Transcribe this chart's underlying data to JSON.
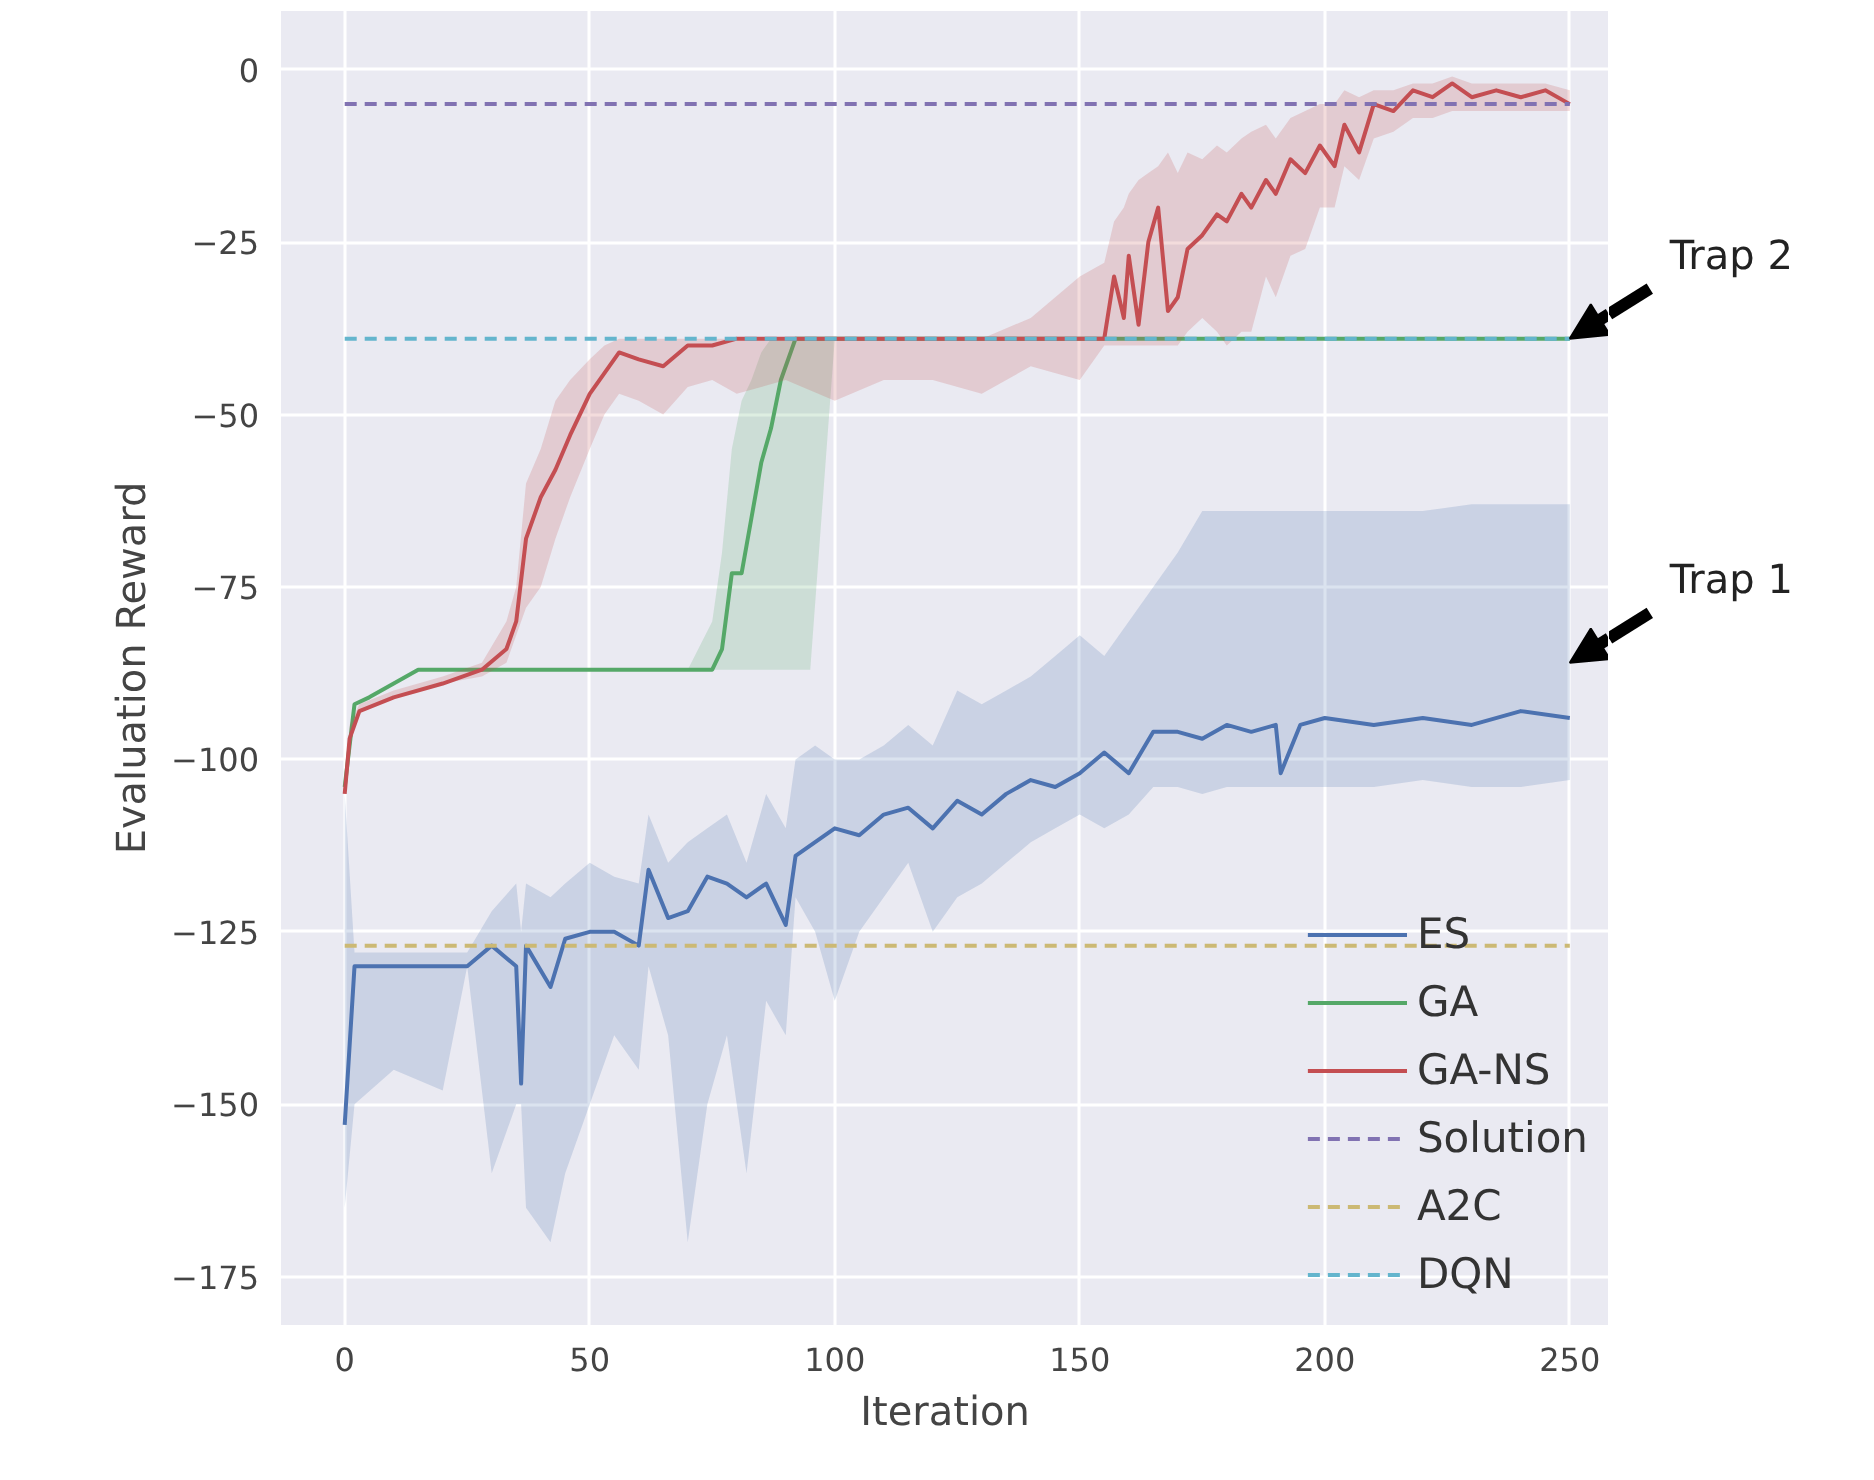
{
  "chart_data": {
    "type": "line",
    "xlabel": "Iteration",
    "ylabel": "Evaluation Reward",
    "xlim": [
      -13,
      258
    ],
    "ylim": [
      -182,
      8.5
    ],
    "xticks": [
      0,
      50,
      100,
      150,
      200,
      250
    ],
    "yticks": [
      0,
      -25,
      -50,
      -75,
      -100,
      -125,
      -150,
      -175
    ],
    "grid": true,
    "legend": "bottom right",
    "marker": "none",
    "annotations": [
      {
        "text": "Trap 2",
        "x": 250,
        "y": -39
      },
      {
        "text": "Trap 1",
        "x": 250,
        "y": -86
      }
    ],
    "series": [
      {
        "name": "ES",
        "color": "#4c72b0",
        "line_style": "solid",
        "x": [
          0,
          2,
          10,
          20,
          25,
          30,
          35,
          36,
          37,
          42,
          45,
          50,
          55,
          60,
          62,
          66,
          70,
          74,
          78,
          82,
          86,
          90,
          92,
          96,
          100,
          105,
          110,
          115,
          120,
          125,
          130,
          135,
          140,
          145,
          150,
          155,
          160,
          165,
          170,
          175,
          180,
          185,
          190,
          191,
          195,
          200,
          210,
          220,
          230,
          240,
          250
        ],
        "values": [
          -153,
          -130,
          -130,
          -130,
          -130,
          -127,
          -130,
          -147,
          -127,
          -133,
          -126,
          -125,
          -125,
          -127,
          -116,
          -123,
          -122,
          -117,
          -118,
          -120,
          -118,
          -124,
          -114,
          -112,
          -110,
          -111,
          -108,
          -107,
          -110,
          -106,
          -108,
          -105,
          -103,
          -104,
          -102,
          -99,
          -102,
          -96,
          -96,
          -97,
          -95,
          -96,
          -95,
          -102,
          -95,
          -94,
          -95,
          -94,
          -95,
          -93,
          -94
        ],
        "lower": [
          -165,
          -150,
          -145,
          -148,
          -130,
          -160,
          -150,
          -150,
          -165,
          -170,
          -160,
          -150,
          -140,
          -145,
          -130,
          -140,
          -170,
          -150,
          -140,
          -160,
          -135,
          -140,
          -120,
          -125,
          -135,
          -125,
          -120,
          -115,
          -125,
          -120,
          -118,
          -115,
          -112,
          -110,
          -108,
          -110,
          -108,
          -104,
          -104,
          -105,
          -104,
          -104,
          -104,
          -104,
          -104,
          -104,
          -104,
          -103,
          -104,
          -104,
          -103
        ],
        "upper": [
          -105,
          -128,
          -128,
          -128,
          -128,
          -122,
          -118,
          -125,
          -118,
          -120,
          -118,
          -115,
          -117,
          -118,
          -108,
          -115,
          -112,
          -110,
          -108,
          -115,
          -105,
          -110,
          -100,
          -98,
          -100,
          -100,
          -98,
          -95,
          -98,
          -90,
          -92,
          -90,
          -88,
          -85,
          -82,
          -85,
          -80,
          -75,
          -70,
          -64,
          -64,
          -64,
          -64,
          -64,
          -64,
          -64,
          -64,
          -64,
          -63,
          -63,
          -63
        ]
      },
      {
        "name": "GA",
        "color": "#55a868",
        "line_style": "solid",
        "x": [
          0,
          2,
          5,
          10,
          15,
          20,
          70,
          75,
          77,
          79,
          81,
          83,
          85,
          87,
          89,
          92,
          95,
          100,
          150,
          200,
          250
        ],
        "values": [
          -104,
          -92,
          -91,
          -89,
          -87,
          -87,
          -87,
          -87,
          -84,
          -73,
          -73,
          -65,
          -57,
          -52,
          -45,
          -39,
          -39,
          -39,
          -39,
          -39,
          -39
        ],
        "lower": [
          -104,
          -92,
          -91,
          -89,
          -87,
          -87,
          -87,
          -87,
          -87,
          -87,
          -87,
          -87,
          -87,
          -87,
          -87,
          -87,
          -87,
          -39,
          -39,
          -39,
          -39
        ],
        "upper": [
          -104,
          -92,
          -91,
          -89,
          -87,
          -87,
          -87,
          -80,
          -70,
          -55,
          -48,
          -45,
          -41,
          -39,
          -39,
          -39,
          -39,
          -39,
          -39,
          -39,
          -39
        ]
      },
      {
        "name": "GA-NS",
        "color": "#c44e52",
        "line_style": "solid",
        "x": [
          0,
          1,
          3,
          10,
          20,
          28,
          33,
          35,
          37,
          40,
          43,
          46,
          50,
          53,
          56,
          60,
          65,
          70,
          75,
          80,
          90,
          100,
          110,
          120,
          130,
          140,
          150,
          155,
          157,
          159,
          160,
          162,
          164,
          166,
          168,
          170,
          172,
          175,
          178,
          180,
          183,
          185,
          188,
          190,
          193,
          196,
          199,
          202,
          204,
          207,
          210,
          214,
          218,
          222,
          226,
          230,
          235,
          240,
          245,
          250
        ],
        "values": [
          -105,
          -97,
          -93,
          -91,
          -89,
          -87,
          -84,
          -80,
          -68,
          -62,
          -58,
          -53,
          -47,
          -44,
          -41,
          -42,
          -43,
          -40,
          -40,
          -39,
          -39,
          -39,
          -39,
          -39,
          -39,
          -39,
          -39,
          -39,
          -30,
          -36,
          -27,
          -37,
          -25,
          -20,
          -35,
          -33,
          -26,
          -24,
          -21,
          -22,
          -18,
          -20,
          -16,
          -18,
          -13,
          -15,
          -11,
          -14,
          -8,
          -12,
          -5,
          -6,
          -3,
          -4,
          -2,
          -4,
          -3,
          -4,
          -3,
          -5
        ],
        "lower": [
          -105,
          -97,
          -93,
          -91,
          -89,
          -88,
          -86,
          -82,
          -78,
          -75,
          -68,
          -62,
          -55,
          -50,
          -47,
          -48,
          -50,
          -46,
          -45,
          -47,
          -45,
          -48,
          -45,
          -45,
          -47,
          -43,
          -45,
          -40,
          -40,
          -40,
          -40,
          -40,
          -40,
          -40,
          -40,
          -40,
          -38,
          -36,
          -38,
          -40,
          -38,
          -38,
          -30,
          -33,
          -27,
          -26,
          -20,
          -20,
          -14,
          -16,
          -10,
          -9,
          -7,
          -7,
          -6,
          -6,
          -6,
          -6,
          -6,
          -6
        ],
        "upper": [
          -105,
          -95,
          -92,
          -90,
          -88,
          -86,
          -80,
          -75,
          -60,
          -55,
          -48,
          -45,
          -42,
          -40,
          -39,
          -39,
          -39,
          -39,
          -39,
          -39,
          -39,
          -39,
          -39,
          -39,
          -39,
          -36,
          -30,
          -28,
          -22,
          -20,
          -18,
          -16,
          -15,
          -14,
          -12,
          -15,
          -12,
          -13,
          -11,
          -12,
          -10,
          -9,
          -8,
          -10,
          -7,
          -6,
          -5,
          -5,
          -3,
          -4,
          -3,
          -3,
          -2,
          -2,
          -1,
          -2,
          -2,
          -2,
          -2,
          -3
        ]
      },
      {
        "name": "Solution",
        "color": "#8172b2",
        "line_style": "dashed",
        "x": [
          0,
          250
        ],
        "values": [
          -5,
          -5
        ]
      },
      {
        "name": "A2C",
        "color": "#ccb974",
        "line_style": "dashed",
        "x": [
          0,
          250
        ],
        "values": [
          -127,
          -127
        ]
      },
      {
        "name": "DQN",
        "color": "#64b5cd",
        "line_style": "dashed",
        "x": [
          0,
          250
        ],
        "values": [
          -39,
          -39
        ]
      }
    ]
  }
}
